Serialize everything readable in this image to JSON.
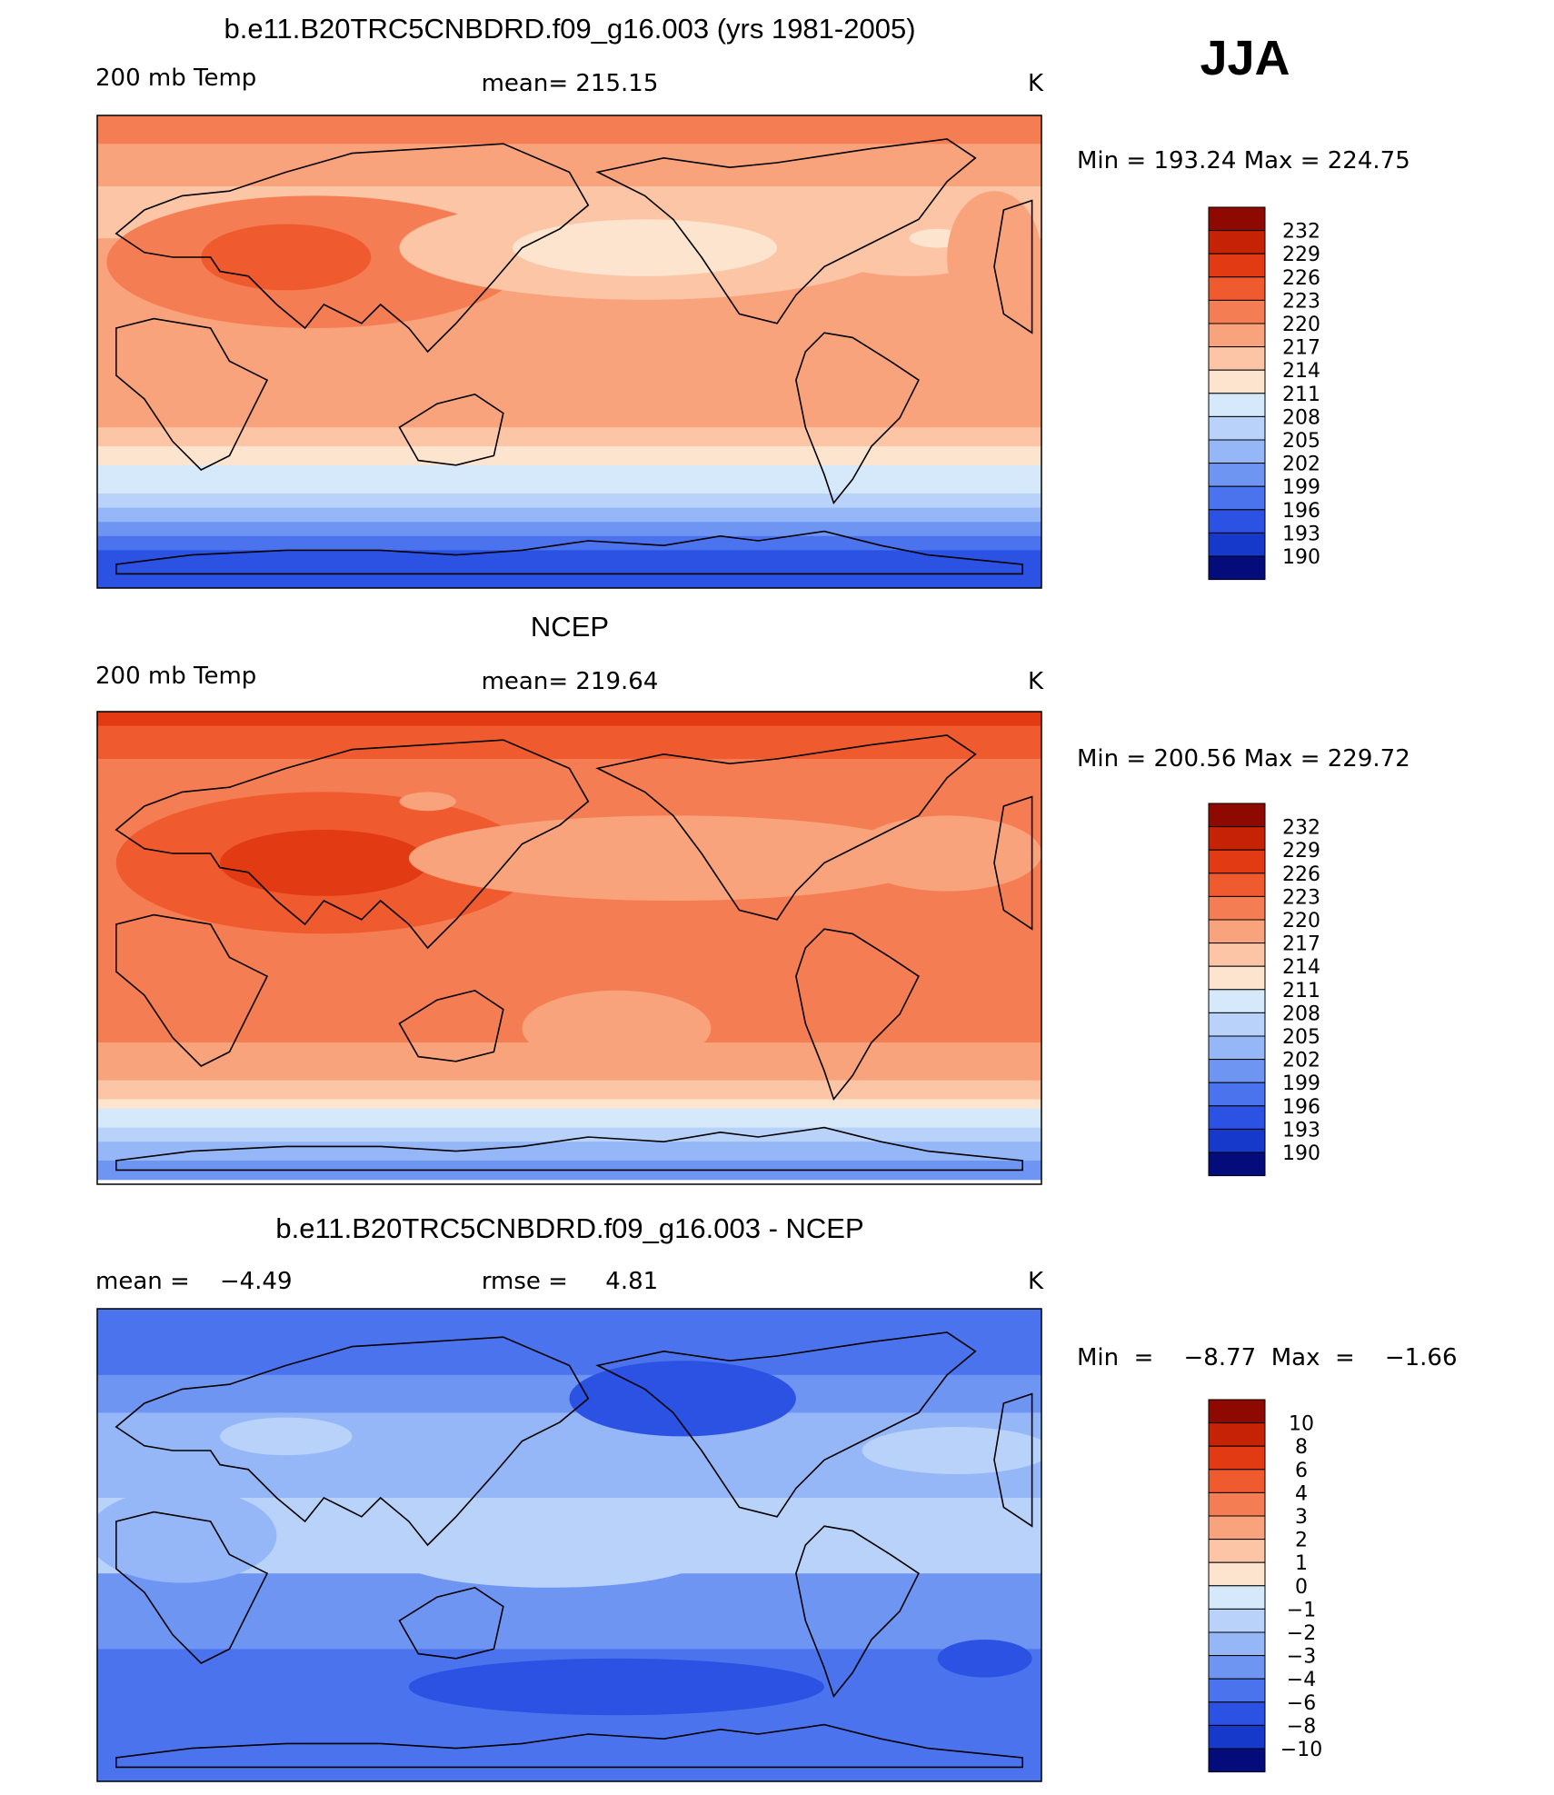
{
  "season": "JJA",
  "colors": {
    "warm": [
      "#fce4cf",
      "#fbc5a6",
      "#f9a37c",
      "#f57d53",
      "#ef5a2e",
      "#e23a12",
      "#c52206",
      "#8e0a00"
    ],
    "cold": [
      "#d6e9fb",
      "#b8d2fa",
      "#95b6f7",
      "#6f95f3",
      "#4b73ee",
      "#2c52e4",
      "#1638cb",
      "#0a2198",
      "#040b7a"
    ],
    "land_outline": "#000000"
  },
  "panels": [
    {
      "id": "model",
      "title": "b.e11.B20TRC5CNBDRD.f09_g16.003 (yrs 1981-2005)",
      "left_label": "200 mb Temp",
      "center_label": "mean=  215.15",
      "units": "K",
      "minmax": "Min  =  193.24  Max  =  224.75",
      "colorbar_labels": [
        "232",
        "229",
        "226",
        "223",
        "220",
        "217",
        "214",
        "211",
        "208",
        "205",
        "202",
        "199",
        "196",
        "193",
        "190"
      ]
    },
    {
      "id": "ncep",
      "title": "NCEP",
      "left_label": "200 mb Temp",
      "center_label": "mean=  219.64",
      "units": "K",
      "minmax": "Min  =  200.56  Max  =  229.72",
      "colorbar_labels": [
        "232",
        "229",
        "226",
        "223",
        "220",
        "217",
        "214",
        "211",
        "208",
        "205",
        "202",
        "199",
        "196",
        "193",
        "190"
      ]
    },
    {
      "id": "diff",
      "title": "b.e11.B20TRC5CNBDRD.f09_g16.003 - NCEP",
      "left_label": "mean =    −4.49",
      "center_label": "rmse =     4.81",
      "units": "K",
      "minmax": "Min  =    −8.77  Max  =    −1.66",
      "colorbar_labels": [
        "10",
        "8",
        "6",
        "4",
        "3",
        "2",
        "1",
        "0",
        "−1",
        "−2",
        "−3",
        "−4",
        "−6",
        "−8",
        "−10"
      ]
    }
  ]
}
